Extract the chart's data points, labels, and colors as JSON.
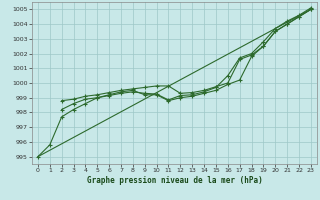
{
  "background_color": "#c8e8e8",
  "grid_color": "#9ec8c8",
  "line_color": "#2d6a2d",
  "title": "Graphe pression niveau de la mer (hPa)",
  "xlim": [
    -0.5,
    23.5
  ],
  "ylim": [
    994.5,
    1005.5
  ],
  "yticks": [
    995,
    996,
    997,
    998,
    999,
    1000,
    1001,
    1002,
    1003,
    1004,
    1005
  ],
  "xticks": [
    0,
    1,
    2,
    3,
    4,
    5,
    6,
    7,
    8,
    9,
    10,
    11,
    12,
    13,
    14,
    15,
    16,
    17,
    18,
    19,
    20,
    21,
    22,
    23
  ],
  "straight_line": [
    [
      0,
      995.0
    ],
    [
      23,
      1005.0
    ]
  ],
  "series1_x": [
    0,
    1,
    2,
    3,
    4,
    5,
    6,
    7,
    8,
    9,
    10,
    11,
    12,
    13,
    14,
    15,
    16,
    17,
    18,
    19,
    20,
    21,
    22,
    23
  ],
  "series1_y": [
    995.0,
    995.8,
    997.7,
    998.2,
    998.6,
    999.0,
    999.2,
    999.4,
    999.5,
    999.2,
    999.2,
    998.8,
    999.0,
    999.1,
    999.3,
    999.5,
    999.9,
    1000.2,
    1001.8,
    1002.5,
    1003.5,
    1004.0,
    1004.5,
    1005.0
  ],
  "series2_x": [
    2,
    3,
    4,
    5,
    6,
    7,
    8,
    9,
    10,
    11,
    12,
    13,
    14,
    15,
    16,
    17,
    18,
    19,
    20,
    21,
    22,
    23
  ],
  "series2_y": [
    998.8,
    998.9,
    999.1,
    999.2,
    999.35,
    999.5,
    999.6,
    999.7,
    999.8,
    999.8,
    999.3,
    999.35,
    999.5,
    999.75,
    1000.0,
    1001.6,
    1001.9,
    1002.5,
    1003.5,
    1004.0,
    1004.5,
    1005.0
  ],
  "series3_x": [
    2,
    3,
    4,
    5,
    6,
    7,
    8,
    9,
    10,
    11,
    12,
    13,
    14,
    15,
    16,
    17,
    18,
    19,
    20,
    21,
    22,
    23
  ],
  "series3_y": [
    998.2,
    998.6,
    998.9,
    999.0,
    999.15,
    999.3,
    999.4,
    999.3,
    999.25,
    998.85,
    999.15,
    999.2,
    999.4,
    999.7,
    1000.5,
    1001.7,
    1002.0,
    1002.8,
    1003.7,
    1004.2,
    1004.6,
    1005.1
  ]
}
